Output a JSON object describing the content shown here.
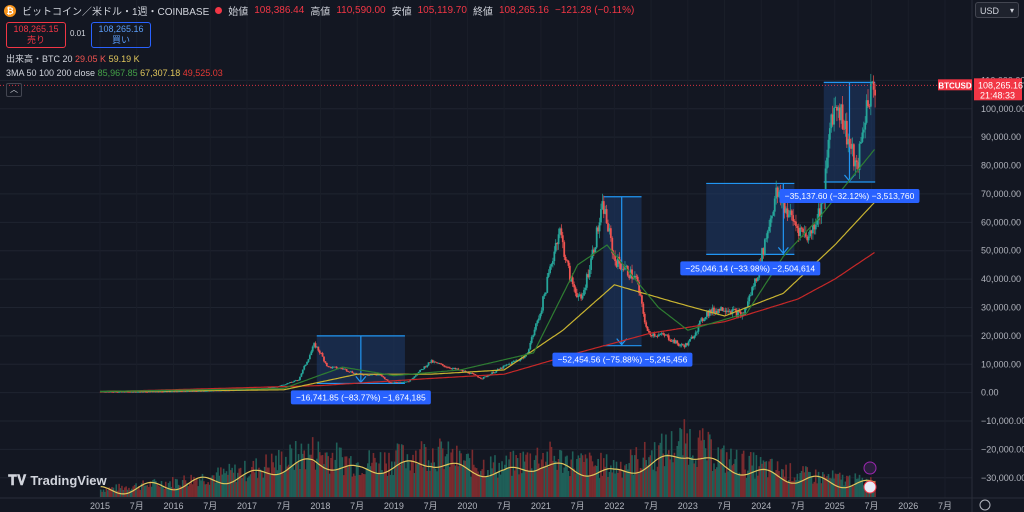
{
  "header": {
    "symbol_title": "ビットコイン／米ドル・1週・COINBASE",
    "open_label": "始値",
    "open_value": "108,386.44",
    "high_label": "高値",
    "high_value": "110,590.00",
    "low_label": "安値",
    "low_value": "105,119.70",
    "close_label": "終値",
    "close_value": "108,265.16",
    "change": "−121.28 (−0.11%)",
    "sell_price": "108,265.15",
    "sell_label": "売り",
    "buy_price": "108,265.16",
    "buy_label": "買い",
    "spread": "0.01",
    "volume_label": "出来高・BTC 20",
    "volume_v1": "29.05 K",
    "volume_v2": "59.19 K",
    "ma_label": "3MA 50 100 200 close",
    "ma_v1": "85,967.85",
    "ma_v2": "67,307.18",
    "ma_v3": "49,525.03",
    "currency": "USD",
    "collapse_icon": "chevron-up-icon"
  },
  "brand": {
    "name": "TradingView"
  },
  "colors": {
    "background": "#131722",
    "up": "#26a69a",
    "down": "#ef5350",
    "ma50": "#2e7d32",
    "ma100": "#c9b431",
    "ma200": "#c62828",
    "range_fill": "#1e3a6a",
    "range_line": "#2196f3",
    "price_tag": "#f23645",
    "volume_ma": "#e0c65c"
  },
  "chart_data": {
    "type": "candlestick",
    "symbol": "BTCUSD",
    "interval": "1W",
    "ylim": [
      -35000,
      120000
    ],
    "y_ticks": [
      110000,
      100000,
      90000,
      80000,
      70000,
      60000,
      50000,
      40000,
      30000,
      20000,
      10000,
      0,
      -10000,
      -20000,
      -30000
    ],
    "y_tick_labels": [
      "110,000.00",
      "100,000.00",
      "90,000.00",
      "80,000.00",
      "70,000.00",
      "60,000.00",
      "50,000.00",
      "40,000.00",
      "30,000.00",
      "20,000.00",
      "10,000.00",
      "0.00",
      "−10,000.00",
      "−20,000.00",
      "−30,000.00"
    ],
    "x_tick_labels": [
      "2015",
      "7月",
      "2016",
      "7月",
      "2017",
      "7月",
      "2018",
      "7月",
      "2019",
      "7月",
      "2020",
      "7月",
      "2021",
      "7月",
      "2022",
      "7月",
      "2023",
      "7月",
      "2024",
      "7月",
      "2025",
      "7月",
      "2026",
      "7月"
    ],
    "x_tick_dates": [
      2015.0,
      2015.5,
      2016.0,
      2016.5,
      2017.0,
      2017.5,
      2018.0,
      2018.5,
      2019.0,
      2019.5,
      2020.0,
      2020.5,
      2021.0,
      2021.5,
      2022.0,
      2022.5,
      2023.0,
      2023.5,
      2024.0,
      2024.5,
      2025.0,
      2025.5,
      2026.0,
      2026.5
    ],
    "last_price_tag": {
      "symbol": "BTCUSD",
      "price": "108,265.16",
      "countdown": "21:48:33",
      "value": 108265.16
    },
    "price_path": [
      [
        2015.0,
        300
      ],
      [
        2015.5,
        250
      ],
      [
        2016.0,
        400
      ],
      [
        2016.5,
        650
      ],
      [
        2017.0,
        950
      ],
      [
        2017.4,
        2000
      ],
      [
        2017.7,
        4500
      ],
      [
        2017.92,
        17000
      ],
      [
        2018.0,
        14000
      ],
      [
        2018.1,
        9000
      ],
      [
        2018.3,
        8500
      ],
      [
        2018.5,
        6500
      ],
      [
        2018.8,
        6300
      ],
      [
        2018.95,
        3500
      ],
      [
        2019.2,
        4000
      ],
      [
        2019.5,
        11000
      ],
      [
        2019.8,
        8500
      ],
      [
        2020.0,
        7200
      ],
      [
        2020.2,
        5000
      ],
      [
        2020.5,
        9200
      ],
      [
        2020.8,
        13000
      ],
      [
        2021.0,
        29000
      ],
      [
        2021.25,
        58000
      ],
      [
        2021.4,
        40000
      ],
      [
        2021.55,
        32000
      ],
      [
        2021.85,
        66000
      ],
      [
        2022.0,
        47000
      ],
      [
        2022.3,
        40000
      ],
      [
        2022.45,
        21000
      ],
      [
        2022.7,
        20000
      ],
      [
        2022.9,
        16500
      ],
      [
        2023.0,
        17000
      ],
      [
        2023.25,
        28000
      ],
      [
        2023.5,
        30000
      ],
      [
        2023.75,
        27000
      ],
      [
        2023.95,
        42000
      ],
      [
        2024.2,
        70000
      ],
      [
        2024.5,
        58000
      ],
      [
        2024.65,
        55000
      ],
      [
        2024.85,
        68000
      ],
      [
        2024.95,
        98000
      ],
      [
        2025.05,
        102000
      ],
      [
        2025.3,
        78000
      ],
      [
        2025.45,
        104000
      ],
      [
        2025.55,
        108265
      ]
    ],
    "ma50_path": [
      [
        2015.0,
        400
      ],
      [
        2017.5,
        1500
      ],
      [
        2018.3,
        9000
      ],
      [
        2019.0,
        6000
      ],
      [
        2019.9,
        8000
      ],
      [
        2020.9,
        14000
      ],
      [
        2021.5,
        45000
      ],
      [
        2021.9,
        52000
      ],
      [
        2022.6,
        30000
      ],
      [
        2023.0,
        22000
      ],
      [
        2023.8,
        28000
      ],
      [
        2024.3,
        48000
      ],
      [
        2024.8,
        62000
      ],
      [
        2025.55,
        85968
      ]
    ],
    "ma100_path": [
      [
        2015.0,
        400
      ],
      [
        2017.5,
        1000
      ],
      [
        2018.5,
        6500
      ],
      [
        2019.5,
        6500
      ],
      [
        2020.5,
        8000
      ],
      [
        2021.3,
        22000
      ],
      [
        2022.0,
        38000
      ],
      [
        2022.8,
        32000
      ],
      [
        2023.5,
        27000
      ],
      [
        2024.3,
        35000
      ],
      [
        2025.0,
        52000
      ],
      [
        2025.55,
        67307
      ]
    ],
    "ma200_path": [
      [
        2015.0,
        300
      ],
      [
        2018.0,
        2500
      ],
      [
        2019.5,
        5000
      ],
      [
        2020.5,
        6500
      ],
      [
        2021.5,
        14000
      ],
      [
        2022.5,
        21000
      ],
      [
        2023.5,
        25000
      ],
      [
        2024.5,
        33000
      ],
      [
        2025.0,
        40000
      ],
      [
        2025.55,
        49525
      ]
    ],
    "price_ranges": [
      {
        "x0": 2017.95,
        "x1": 2019.15,
        "y_top": 20000,
        "y_bottom": 3250,
        "arrow_x": 2018.55,
        "label": "−16,741.85 (−83.77%) −1,674,185"
      },
      {
        "x0": 2021.85,
        "x1": 2022.37,
        "y_top": 69000,
        "y_bottom": 16550,
        "arrow_x": 2022.1,
        "label": "−52,454.56 (−75.88%) −5,245,456"
      },
      {
        "x0": 2023.25,
        "x1": 2024.45,
        "y_top": 73700,
        "y_bottom": 48700,
        "arrow_x": 2024.3,
        "label": "−25,046.14 (−33.98%) −2,504,614"
      },
      {
        "x0": 2024.85,
        "x1": 2025.55,
        "y_top": 109300,
        "y_bottom": 74200,
        "arrow_x": 2025.2,
        "label": "−35,137.60 (−32.12%) −3,513,760"
      }
    ],
    "volume_level_path": [
      [
        2015.0,
        0.1
      ],
      [
        2016.0,
        0.2
      ],
      [
        2017.0,
        0.35
      ],
      [
        2017.9,
        0.6
      ],
      [
        2018.5,
        0.45
      ],
      [
        2019.0,
        0.5
      ],
      [
        2019.5,
        0.6
      ],
      [
        2020.0,
        0.45
      ],
      [
        2020.5,
        0.4
      ],
      [
        2021.0,
        0.55
      ],
      [
        2021.5,
        0.45
      ],
      [
        2022.0,
        0.4
      ],
      [
        2022.5,
        0.55
      ],
      [
        2023.0,
        0.75
      ],
      [
        2023.5,
        0.5
      ],
      [
        2024.0,
        0.4
      ],
      [
        2024.5,
        0.3
      ],
      [
        2025.0,
        0.25
      ],
      [
        2025.5,
        0.2
      ]
    ]
  }
}
